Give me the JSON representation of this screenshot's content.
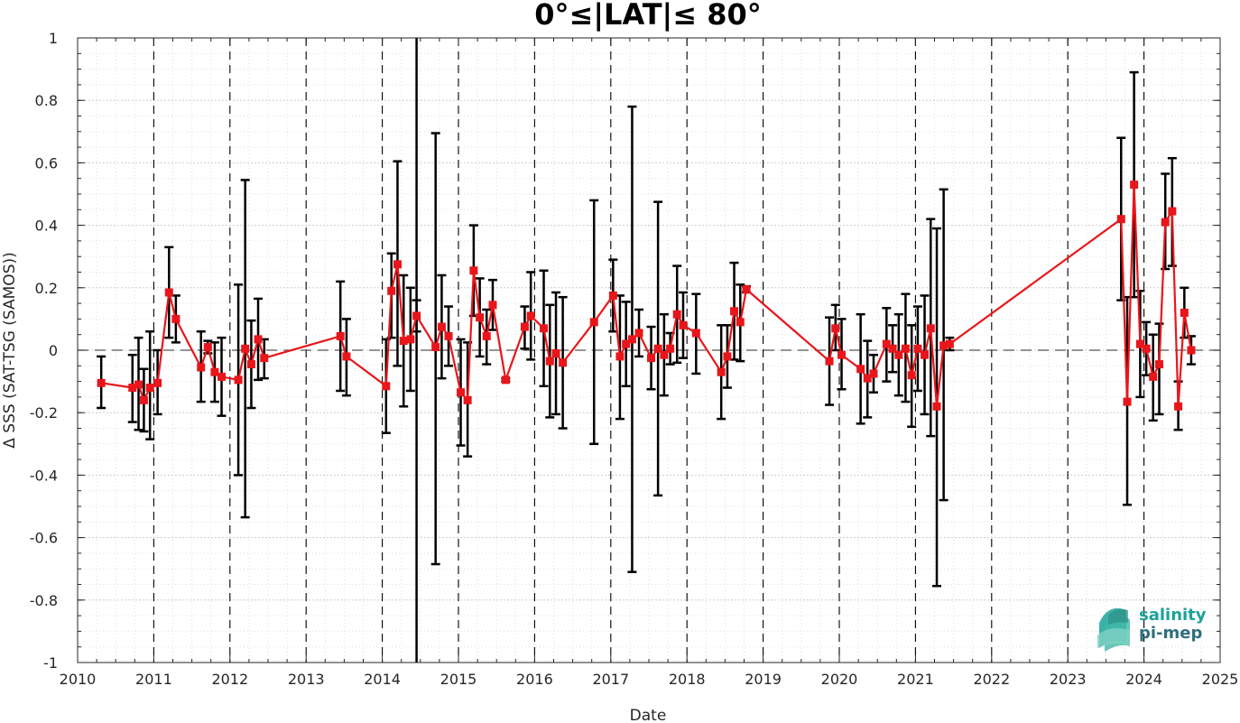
{
  "chart_data": {
    "type": "line",
    "title": "0°≤|LAT|≤ 80°",
    "xlabel": "Date",
    "ylabel": "Δ SSS (SAT-TSG (SAMOS))",
    "xlim": [
      2010,
      2025
    ],
    "ylim": [
      -1,
      1
    ],
    "x_ticks": [
      "2010",
      "2011",
      "2012",
      "2013",
      "2014",
      "2015",
      "2016",
      "2017",
      "2018",
      "2019",
      "2020",
      "2021",
      "2022",
      "2023",
      "2024",
      "2025"
    ],
    "y_ticks": [
      "-1",
      "-0.8",
      "-0.6",
      "-0.4",
      "-0.2",
      "0",
      "0.2",
      "0.4",
      "0.6",
      "0.8",
      "1"
    ],
    "grid": true,
    "year_boundaries_dashed": true,
    "reference_line_y": 0,
    "vertical_marker_x": 2014.45,
    "series": [
      {
        "color": "#e8161b",
        "marker": "square",
        "errorbar_color": "#000000",
        "points": [
          {
            "x": 2010.31,
            "y": -0.105,
            "lo": -0.185,
            "hi": -0.02
          },
          {
            "x": 2010.72,
            "y": -0.12,
            "lo": -0.23,
            "hi": -0.015
          },
          {
            "x": 2010.8,
            "y": -0.11,
            "lo": -0.255,
            "hi": 0.04
          },
          {
            "x": 2010.87,
            "y": -0.16,
            "lo": -0.26,
            "hi": -0.06
          },
          {
            "x": 2010.95,
            "y": -0.12,
            "lo": -0.285,
            "hi": 0.06
          },
          {
            "x": 2011.05,
            "y": -0.105,
            "lo": -0.205,
            "hi": 0.0
          },
          {
            "x": 2011.2,
            "y": 0.185,
            "lo": 0.04,
            "hi": 0.33
          },
          {
            "x": 2011.29,
            "y": 0.1,
            "lo": 0.025,
            "hi": 0.175
          },
          {
            "x": 2011.62,
            "y": -0.055,
            "lo": -0.165,
            "hi": 0.06
          },
          {
            "x": 2011.71,
            "y": 0.01,
            "lo": -0.01,
            "hi": 0.03
          },
          {
            "x": 2011.8,
            "y": -0.07,
            "lo": -0.165,
            "hi": 0.025
          },
          {
            "x": 2011.89,
            "y": -0.085,
            "lo": -0.21,
            "hi": 0.04
          },
          {
            "x": 2012.11,
            "y": -0.095,
            "lo": -0.4,
            "hi": 0.21
          },
          {
            "x": 2012.2,
            "y": 0.005,
            "lo": -0.535,
            "hi": 0.545
          },
          {
            "x": 2012.28,
            "y": -0.045,
            "lo": -0.185,
            "hi": 0.095
          },
          {
            "x": 2012.37,
            "y": 0.035,
            "lo": -0.095,
            "hi": 0.165
          },
          {
            "x": 2012.45,
            "y": -0.025,
            "lo": -0.09,
            "hi": 0.035
          },
          {
            "x": 2013.45,
            "y": 0.045,
            "lo": -0.13,
            "hi": 0.22
          },
          {
            "x": 2013.53,
            "y": -0.02,
            "lo": -0.145,
            "hi": 0.1
          },
          {
            "x": 2014.05,
            "y": -0.115,
            "lo": -0.265,
            "hi": 0.035
          },
          {
            "x": 2014.12,
            "y": 0.19,
            "lo": 0.04,
            "hi": 0.31
          },
          {
            "x": 2014.2,
            "y": 0.275,
            "lo": -0.05,
            "hi": 0.605
          },
          {
            "x": 2014.28,
            "y": 0.03,
            "lo": -0.18,
            "hi": 0.24
          },
          {
            "x": 2014.37,
            "y": 0.035,
            "lo": -0.13,
            "hi": 0.2
          },
          {
            "x": 2014.45,
            "y": 0.11,
            "lo": 0.06,
            "hi": 0.16
          },
          {
            "x": 2014.7,
            "y": 0.01,
            "lo": -0.685,
            "hi": 0.695
          },
          {
            "x": 2014.78,
            "y": 0.075,
            "lo": -0.09,
            "hi": 0.24
          },
          {
            "x": 2014.87,
            "y": 0.045,
            "lo": -0.05,
            "hi": 0.14
          },
          {
            "x": 2015.03,
            "y": -0.135,
            "lo": -0.305,
            "hi": 0.035
          },
          {
            "x": 2015.12,
            "y": -0.16,
            "lo": -0.34,
            "hi": 0.025
          },
          {
            "x": 2015.2,
            "y": 0.255,
            "lo": 0.11,
            "hi": 0.4
          },
          {
            "x": 2015.28,
            "y": 0.105,
            "lo": -0.02,
            "hi": 0.23
          },
          {
            "x": 2015.37,
            "y": 0.045,
            "lo": -0.045,
            "hi": 0.13
          },
          {
            "x": 2015.45,
            "y": 0.145,
            "lo": 0.065,
            "hi": 0.225
          },
          {
            "x": 2015.62,
            "y": -0.095,
            "lo": -0.1,
            "hi": -0.09
          },
          {
            "x": 2015.87,
            "y": 0.075,
            "lo": 0.005,
            "hi": 0.14
          },
          {
            "x": 2015.95,
            "y": 0.11,
            "lo": -0.03,
            "hi": 0.25
          },
          {
            "x": 2016.12,
            "y": 0.07,
            "lo": -0.115,
            "hi": 0.255
          },
          {
            "x": 2016.2,
            "y": -0.035,
            "lo": -0.215,
            "hi": 0.145
          },
          {
            "x": 2016.28,
            "y": -0.01,
            "lo": -0.205,
            "hi": 0.185
          },
          {
            "x": 2016.37,
            "y": -0.04,
            "lo": -0.25,
            "hi": 0.17
          },
          {
            "x": 2016.78,
            "y": 0.09,
            "lo": -0.3,
            "hi": 0.48
          },
          {
            "x": 2017.03,
            "y": 0.175,
            "lo": 0.06,
            "hi": 0.29
          },
          {
            "x": 2017.12,
            "y": -0.02,
            "lo": -0.22,
            "hi": 0.175
          },
          {
            "x": 2017.2,
            "y": 0.02,
            "lo": -0.115,
            "hi": 0.155
          },
          {
            "x": 2017.28,
            "y": 0.035,
            "lo": -0.71,
            "hi": 0.78
          },
          {
            "x": 2017.37,
            "y": 0.055,
            "lo": -0.02,
            "hi": 0.13
          },
          {
            "x": 2017.53,
            "y": -0.025,
            "lo": -0.125,
            "hi": 0.075
          },
          {
            "x": 2017.62,
            "y": 0.005,
            "lo": -0.465,
            "hi": 0.475
          },
          {
            "x": 2017.7,
            "y": -0.015,
            "lo": -0.145,
            "hi": 0.115
          },
          {
            "x": 2017.78,
            "y": 0.005,
            "lo": -0.045,
            "hi": 0.055
          },
          {
            "x": 2017.87,
            "y": 0.115,
            "lo": -0.04,
            "hi": 0.27
          },
          {
            "x": 2017.95,
            "y": 0.08,
            "lo": -0.025,
            "hi": 0.185
          },
          {
            "x": 2018.12,
            "y": 0.055,
            "lo": -0.075,
            "hi": 0.18
          },
          {
            "x": 2018.45,
            "y": -0.07,
            "lo": -0.22,
            "hi": 0.08
          },
          {
            "x": 2018.53,
            "y": -0.02,
            "lo": -0.12,
            "hi": 0.08
          },
          {
            "x": 2018.62,
            "y": 0.125,
            "lo": -0.03,
            "hi": 0.28
          },
          {
            "x": 2018.7,
            "y": 0.09,
            "lo": -0.035,
            "hi": 0.21
          },
          {
            "x": 2018.78,
            "y": 0.195,
            "lo": 0.185,
            "hi": 0.205
          },
          {
            "x": 2019.87,
            "y": -0.035,
            "lo": -0.175,
            "hi": 0.105
          },
          {
            "x": 2019.95,
            "y": 0.07,
            "lo": 0.0,
            "hi": 0.145
          },
          {
            "x": 2020.03,
            "y": -0.015,
            "lo": -0.125,
            "hi": 0.1
          },
          {
            "x": 2020.28,
            "y": -0.06,
            "lo": -0.235,
            "hi": 0.115
          },
          {
            "x": 2020.37,
            "y": -0.09,
            "lo": -0.215,
            "hi": 0.03
          },
          {
            "x": 2020.45,
            "y": -0.075,
            "lo": -0.135,
            "hi": -0.015
          },
          {
            "x": 2020.62,
            "y": 0.02,
            "lo": -0.1,
            "hi": 0.135
          },
          {
            "x": 2020.7,
            "y": 0.005,
            "lo": -0.07,
            "hi": 0.08
          },
          {
            "x": 2020.78,
            "y": -0.015,
            "lo": -0.145,
            "hi": 0.115
          },
          {
            "x": 2020.87,
            "y": 0.005,
            "lo": -0.165,
            "hi": 0.18
          },
          {
            "x": 2020.95,
            "y": -0.08,
            "lo": -0.245,
            "hi": 0.08
          },
          {
            "x": 2021.03,
            "y": 0.005,
            "lo": -0.13,
            "hi": 0.14
          },
          {
            "x": 2021.12,
            "y": -0.015,
            "lo": -0.205,
            "hi": 0.175
          },
          {
            "x": 2021.2,
            "y": 0.07,
            "lo": -0.275,
            "hi": 0.42
          },
          {
            "x": 2021.28,
            "y": -0.18,
            "lo": -0.755,
            "hi": 0.39
          },
          {
            "x": 2021.37,
            "y": 0.015,
            "lo": -0.48,
            "hi": 0.515
          },
          {
            "x": 2021.45,
            "y": 0.02,
            "lo": 0.0,
            "hi": 0.04
          },
          {
            "x": 2023.7,
            "y": 0.42,
            "lo": 0.16,
            "hi": 0.68
          },
          {
            "x": 2023.78,
            "y": -0.165,
            "lo": -0.495,
            "hi": 0.17
          },
          {
            "x": 2023.87,
            "y": 0.53,
            "lo": 0.17,
            "hi": 0.89
          },
          {
            "x": 2023.95,
            "y": 0.02,
            "lo": -0.15,
            "hi": 0.19
          },
          {
            "x": 2024.03,
            "y": 0.005,
            "lo": -0.08,
            "hi": 0.09
          },
          {
            "x": 2024.12,
            "y": -0.085,
            "lo": -0.225,
            "hi": 0.05
          },
          {
            "x": 2024.2,
            "y": -0.045,
            "lo": -0.205,
            "hi": 0.085
          },
          {
            "x": 2024.28,
            "y": 0.41,
            "lo": 0.26,
            "hi": 0.565
          },
          {
            "x": 2024.37,
            "y": 0.445,
            "lo": 0.27,
            "hi": 0.615
          },
          {
            "x": 2024.45,
            "y": -0.18,
            "lo": -0.255,
            "hi": -0.1
          },
          {
            "x": 2024.53,
            "y": 0.12,
            "lo": 0.04,
            "hi": 0.2
          },
          {
            "x": 2024.62,
            "y": 0.0,
            "lo": -0.045,
            "hi": 0.045
          }
        ]
      }
    ]
  },
  "logo": {
    "line1": "salinity",
    "line2": "pi-mep",
    "color1": "#1aa39a",
    "color2": "#2e6f7c"
  },
  "colors": {
    "series": "#e8161b",
    "errorbar": "#000000",
    "axis": "#262626",
    "grid": "#dfdfdf"
  }
}
